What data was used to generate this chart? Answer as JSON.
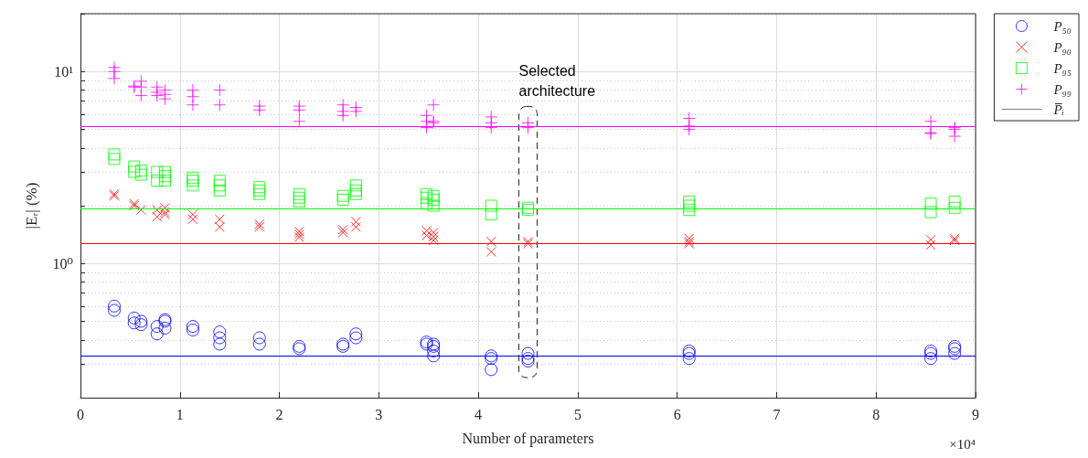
{
  "chart_data": {
    "type": "scatter",
    "xlabel": "Number of parameters",
    "ylabel": "|Eᵣ| (%)",
    "xlim": [
      0,
      9
    ],
    "xticks": [
      0,
      1,
      2,
      3,
      4,
      5,
      6,
      7,
      8,
      9
    ],
    "ylim": [
      0.2,
      20
    ],
    "yticks": [
      {
        "value": 0.2,
        "label": null
      },
      {
        "value": 0.3,
        "label": null
      },
      {
        "value": 0.4,
        "label": null
      },
      {
        "value": 0.5,
        "label": null
      },
      {
        "value": 0.6,
        "label": null
      },
      {
        "value": 0.7,
        "label": null
      },
      {
        "value": 0.8,
        "label": null
      },
      {
        "value": 0.9,
        "label": null
      },
      {
        "value": 1,
        "label": "10⁰"
      },
      {
        "value": 2,
        "label": null
      },
      {
        "value": 3,
        "label": null
      },
      {
        "value": 4,
        "label": null
      },
      {
        "value": 5,
        "label": null
      },
      {
        "value": 6,
        "label": null
      },
      {
        "value": 7,
        "label": null
      },
      {
        "value": 8,
        "label": null
      },
      {
        "value": 9,
        "label": null
      },
      {
        "value": 10,
        "label": "10¹"
      },
      {
        "value": 20,
        "label": null
      }
    ],
    "log": "y",
    "grid": true,
    "legend": "top right",
    "series": [
      {
        "name": "P₅₀",
        "color": "#0000ff",
        "marker": "circle",
        "x": [
          0.34,
          0.34,
          0.54,
          0.54,
          0.61,
          0.61,
          0.77,
          0.77,
          0.85,
          0.85,
          0.85,
          1.13,
          1.13,
          1.4,
          1.4,
          1.4,
          1.8,
          1.8,
          2.2,
          2.2,
          2.64,
          2.64,
          2.77,
          2.77,
          3.48,
          3.48,
          3.55,
          3.55,
          3.55,
          3.55,
          4.13,
          4.13,
          4.13,
          4.5,
          4.5,
          4.5,
          6.12,
          6.12,
          6.12,
          8.55,
          8.55,
          8.55,
          8.79,
          8.79,
          8.79
        ],
        "values": [
          0.6,
          0.57,
          0.52,
          0.49,
          0.5,
          0.48,
          0.47,
          0.43,
          0.51,
          0.5,
          0.46,
          0.47,
          0.45,
          0.44,
          0.41,
          0.38,
          0.41,
          0.38,
          0.37,
          0.36,
          0.38,
          0.37,
          0.43,
          0.41,
          0.39,
          0.38,
          0.38,
          0.37,
          0.35,
          0.33,
          0.33,
          0.32,
          0.28,
          0.34,
          0.32,
          0.31,
          0.35,
          0.34,
          0.32,
          0.35,
          0.34,
          0.32,
          0.37,
          0.36,
          0.34
        ]
      },
      {
        "name": "P₉₀",
        "color": "#ff0000",
        "marker": "x",
        "x": [
          0.34,
          0.34,
          0.54,
          0.54,
          0.61,
          0.77,
          0.77,
          0.85,
          0.85,
          0.85,
          1.13,
          1.13,
          1.4,
          1.4,
          1.8,
          1.8,
          2.2,
          2.2,
          2.2,
          2.64,
          2.64,
          2.77,
          2.77,
          3.48,
          3.48,
          3.55,
          3.55,
          3.55,
          4.13,
          4.13,
          4.5,
          4.5,
          6.12,
          6.12,
          6.12,
          8.55,
          8.55,
          8.79,
          8.79
        ],
        "values": [
          2.3,
          2.25,
          2.05,
          2.0,
          1.9,
          1.9,
          1.75,
          1.95,
          1.85,
          1.8,
          1.8,
          1.7,
          1.7,
          1.55,
          1.6,
          1.55,
          1.47,
          1.42,
          1.37,
          1.5,
          1.45,
          1.65,
          1.55,
          1.48,
          1.4,
          1.45,
          1.38,
          1.32,
          1.3,
          1.15,
          1.3,
          1.27,
          1.35,
          1.3,
          1.27,
          1.33,
          1.25,
          1.35,
          1.32
        ]
      },
      {
        "name": "P₉₅",
        "color": "#00ff00",
        "marker": "square",
        "x": [
          0.34,
          0.34,
          0.54,
          0.54,
          0.61,
          0.61,
          0.77,
          0.77,
          0.85,
          0.85,
          0.85,
          1.13,
          1.13,
          1.13,
          1.4,
          1.4,
          1.4,
          1.8,
          1.8,
          1.8,
          2.2,
          2.2,
          2.2,
          2.64,
          2.64,
          2.77,
          2.77,
          2.77,
          3.48,
          3.48,
          3.48,
          3.55,
          3.55,
          3.55,
          4.13,
          4.13,
          4.5,
          4.5,
          6.12,
          6.12,
          6.12,
          8.55,
          8.55,
          8.79,
          8.79
        ],
        "values": [
          3.7,
          3.5,
          3.2,
          3.0,
          3.05,
          2.9,
          3.0,
          2.7,
          3.0,
          2.85,
          2.7,
          2.8,
          2.7,
          2.55,
          2.7,
          2.55,
          2.4,
          2.5,
          2.4,
          2.3,
          2.3,
          2.2,
          2.1,
          2.25,
          2.15,
          2.55,
          2.4,
          2.3,
          2.3,
          2.2,
          2.05,
          2.25,
          2.15,
          2.0,
          2.0,
          1.8,
          1.95,
          1.9,
          2.1,
          2.0,
          1.9,
          2.05,
          1.85,
          2.1,
          1.95
        ]
      },
      {
        "name": "P₉₉",
        "color": "#ff00ff",
        "marker": "cross",
        "x": [
          0.34,
          0.34,
          0.34,
          0.54,
          0.54,
          0.61,
          0.61,
          0.61,
          0.77,
          0.77,
          0.77,
          0.85,
          0.85,
          0.85,
          1.13,
          1.13,
          1.13,
          1.4,
          1.4,
          1.8,
          1.8,
          2.2,
          2.2,
          2.2,
          2.64,
          2.64,
          2.64,
          2.77,
          2.77,
          3.48,
          3.48,
          3.48,
          3.55,
          3.55,
          3.55,
          4.13,
          4.13,
          4.13,
          4.5,
          4.5,
          6.12,
          6.12,
          6.12,
          8.55,
          8.55,
          8.55,
          8.79,
          8.79,
          8.79
        ],
        "values": [
          10.5,
          10,
          9.2,
          8.4,
          8.3,
          8.9,
          8.3,
          7.5,
          8.3,
          7.8,
          7.5,
          8,
          7.6,
          7.2,
          8,
          7.4,
          6.7,
          8,
          6.7,
          6.6,
          6.3,
          6.6,
          6.3,
          5.5,
          6.7,
          6.2,
          5.9,
          6.5,
          6.2,
          5.9,
          5.5,
          5.1,
          6.7,
          5.5,
          5.4,
          5.8,
          5.4,
          5.1,
          5.4,
          5.1,
          5.7,
          5.2,
          5.0,
          5.5,
          4.8,
          4.75,
          5.1,
          5.0,
          4.6
        ]
      },
      {
        "name": "P̅ᵢ",
        "type": "line",
        "color": "#000000"
      }
    ],
    "ref_lines": [
      {
        "axis": "y",
        "value": 0.33,
        "color": "#0000ff"
      },
      {
        "axis": "y",
        "value": 1.27,
        "color": "#ff0000"
      },
      {
        "axis": "y",
        "value": 1.93,
        "color": "#00ff00"
      },
      {
        "axis": "y",
        "value": 5.2,
        "color": "#ff00ff"
      }
    ],
    "annotations": [
      "×10⁴",
      {
        "text": "Selected architecture",
        "x": 4.5,
        "y": 5.4
      }
    ]
  }
}
